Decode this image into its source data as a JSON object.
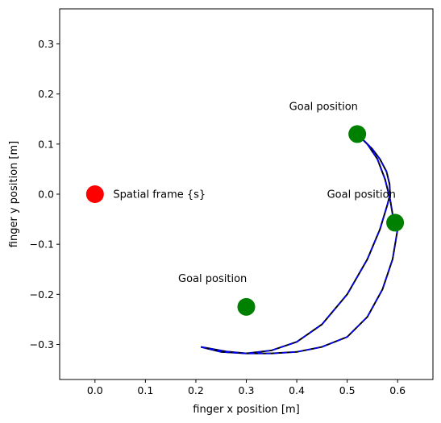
{
  "chart_data": {
    "type": "scatter",
    "title": "",
    "xlabel": "finger x position [m]",
    "ylabel": "finger y position [m]",
    "xlim": [
      -0.07,
      0.67
    ],
    "ylim": [
      -0.37,
      0.37
    ],
    "xticks": [
      0.0,
      0.1,
      0.2,
      0.3,
      0.4,
      0.5,
      0.6
    ],
    "xtick_labels": [
      "0.0",
      "0.1",
      "0.2",
      "0.3",
      "0.4",
      "0.5",
      "0.6"
    ],
    "yticks": [
      -0.3,
      -0.2,
      -0.1,
      0.0,
      0.1,
      0.2,
      0.3
    ],
    "ytick_labels": [
      "−0.3",
      "−0.2",
      "−0.1",
      "0.0",
      "0.1",
      "0.2",
      "0.3"
    ],
    "grid": false,
    "points": [
      {
        "x": 0.0,
        "y": 0.0,
        "color": "#ff0000",
        "label": "Spatial frame {s}",
        "label_dx": 0.036,
        "label_dy": 0.0,
        "anchor": "start"
      },
      {
        "x": 0.52,
        "y": 0.12,
        "color": "#008000",
        "label": "Goal position",
        "label_dx": -0.135,
        "label_dy": 0.055,
        "anchor": "start"
      },
      {
        "x": 0.595,
        "y": -0.057,
        "color": "#008000",
        "label": "Goal position",
        "label_dx": -0.135,
        "label_dy": 0.057,
        "anchor": "start"
      },
      {
        "x": 0.3,
        "y": -0.225,
        "color": "#008000",
        "label": "Goal position",
        "label_dx": -0.135,
        "label_dy": 0.057,
        "anchor": "start"
      }
    ],
    "series": [
      {
        "color": "#000000",
        "dash": "solid",
        "x": [
          0.21,
          0.25,
          0.3,
          0.35,
          0.4,
          0.45,
          0.5,
          0.54,
          0.565,
          0.58,
          0.585,
          0.584,
          0.578,
          0.565,
          0.55,
          0.535,
          0.52
        ],
        "y": [
          -0.305,
          -0.315,
          -0.318,
          -0.312,
          -0.295,
          -0.26,
          -0.2,
          -0.13,
          -0.07,
          -0.02,
          0.0,
          0.02,
          0.045,
          0.07,
          0.09,
          0.105,
          0.12
        ]
      },
      {
        "color": "#000000",
        "dash": "solid",
        "x": [
          0.52,
          0.54,
          0.56,
          0.575,
          0.585,
          0.59,
          0.595,
          0.6,
          0.59,
          0.57,
          0.54,
          0.5,
          0.45,
          0.4,
          0.35,
          0.3,
          0.26,
          0.21
        ],
        "y": [
          0.12,
          0.1,
          0.07,
          0.03,
          -0.01,
          -0.04,
          -0.057,
          -0.07,
          -0.13,
          -0.19,
          -0.245,
          -0.285,
          -0.305,
          -0.315,
          -0.318,
          -0.318,
          -0.314,
          -0.305
        ]
      },
      {
        "color": "#0000ff",
        "dash": "dashed",
        "x": [
          0.21,
          0.25,
          0.3,
          0.35,
          0.4,
          0.45,
          0.5,
          0.54,
          0.565,
          0.58,
          0.585,
          0.584,
          0.578,
          0.565,
          0.55,
          0.535,
          0.52
        ],
        "y": [
          -0.305,
          -0.315,
          -0.318,
          -0.312,
          -0.295,
          -0.26,
          -0.2,
          -0.13,
          -0.07,
          -0.02,
          0.0,
          0.02,
          0.045,
          0.07,
          0.09,
          0.105,
          0.12
        ]
      },
      {
        "color": "#0000ff",
        "dash": "dashed",
        "x": [
          0.52,
          0.54,
          0.56,
          0.575,
          0.585,
          0.59,
          0.595,
          0.6,
          0.59,
          0.57,
          0.54,
          0.5,
          0.45,
          0.4,
          0.35,
          0.3,
          0.26,
          0.21
        ],
        "y": [
          0.12,
          0.1,
          0.07,
          0.03,
          -0.01,
          -0.04,
          -0.057,
          -0.07,
          -0.13,
          -0.19,
          -0.245,
          -0.285,
          -0.305,
          -0.315,
          -0.318,
          -0.318,
          -0.314,
          -0.305
        ]
      }
    ]
  }
}
